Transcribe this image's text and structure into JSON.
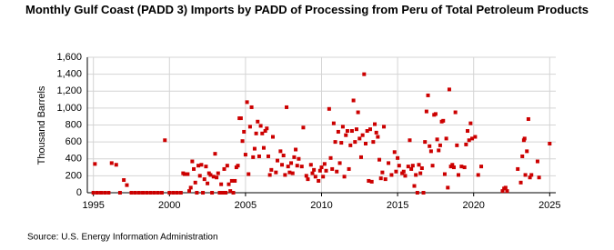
{
  "chart_data": {
    "type": "scatter",
    "title": "Monthly Gulf Coast (PADD 3) Imports by PADD of Processing from Peru of Total Petroleum Products",
    "y_label": "Thousand Barrels",
    "source": "Source: U.S. Energy Information Administration",
    "color": "#cc0000",
    "grid": true,
    "xlim": [
      1994.6,
      2025.4
    ],
    "xticks": [
      1995,
      2000,
      2005,
      2010,
      2015,
      2020,
      2025
    ],
    "ylim": [
      0,
      1600
    ],
    "yticks": [
      0,
      200,
      400,
      600,
      800,
      {
        "value": 1000,
        "label": "1,000"
      },
      {
        "value": 1200,
        "label": "1,200"
      },
      {
        "value": 1400,
        "label": "1,400"
      },
      {
        "value": 1600,
        "label": "1,600"
      }
    ],
    "x": [
      1995.0,
      1995.1,
      1995.25,
      1995.5,
      1995.75,
      1996.0,
      1996.2,
      1996.5,
      1996.75,
      1997.0,
      1997.2,
      1997.5,
      1997.75,
      1998.0,
      1998.25,
      1998.5,
      1998.75,
      1999.0,
      1999.25,
      1999.5,
      1999.7,
      2000.0,
      2000.25,
      2000.5,
      2000.75,
      2000.9,
      2001.0,
      2001.2,
      2001.3,
      2001.4,
      2001.5,
      2001.6,
      2001.7,
      2001.8,
      2001.9,
      2002.0,
      2002.1,
      2002.2,
      2002.3,
      2002.4,
      2002.5,
      2002.6,
      2002.7,
      2002.8,
      2002.9,
      2003.0,
      2003.1,
      2003.2,
      2003.3,
      2003.4,
      2003.5,
      2003.6,
      2003.7,
      2003.8,
      2003.9,
      2004.0,
      2004.1,
      2004.2,
      2004.3,
      2004.4,
      2004.5,
      2004.6,
      2004.7,
      2004.8,
      2004.9,
      2005.0,
      2005.1,
      2005.2,
      2005.3,
      2005.4,
      2005.5,
      2005.6,
      2005.7,
      2005.8,
      2005.9,
      2006.0,
      2006.1,
      2006.2,
      2006.3,
      2006.4,
      2006.5,
      2006.6,
      2006.7,
      2006.8,
      2007.0,
      2007.1,
      2007.3,
      2007.4,
      2007.5,
      2007.6,
      2007.7,
      2007.8,
      2007.9,
      2008.0,
      2008.1,
      2008.2,
      2008.3,
      2008.4,
      2008.5,
      2008.7,
      2008.8,
      2009.0,
      2009.1,
      2009.3,
      2009.4,
      2009.5,
      2009.6,
      2009.8,
      2009.9,
      2010.0,
      2010.1,
      2010.2,
      2010.3,
      2010.5,
      2010.6,
      2010.7,
      2010.8,
      2010.9,
      2011.0,
      2011.1,
      2011.2,
      2011.3,
      2011.4,
      2011.5,
      2011.6,
      2011.7,
      2011.8,
      2011.9,
      2012.0,
      2012.1,
      2012.2,
      2012.3,
      2012.4,
      2012.5,
      2012.6,
      2012.7,
      2012.8,
      2012.9,
      2013.0,
      2013.1,
      2013.2,
      2013.3,
      2013.4,
      2013.5,
      2013.6,
      2013.7,
      2013.8,
      2013.9,
      2014.0,
      2014.1,
      2014.2,
      2014.4,
      2014.6,
      2014.8,
      2014.9,
      2015.0,
      2015.1,
      2015.3,
      2015.4,
      2015.5,
      2015.7,
      2015.8,
      2015.9,
      2016.0,
      2016.1,
      2016.2,
      2016.3,
      2016.4,
      2016.5,
      2016.6,
      2016.7,
      2016.8,
      2016.9,
      2017.0,
      2017.1,
      2017.2,
      2017.3,
      2017.4,
      2017.5,
      2017.6,
      2017.7,
      2017.8,
      2017.9,
      2018.0,
      2018.1,
      2018.2,
      2018.3,
      2018.4,
      2018.5,
      2018.6,
      2018.7,
      2018.8,
      2018.9,
      2019.0,
      2019.2,
      2019.4,
      2019.5,
      2019.6,
      2019.7,
      2019.8,
      2019.9,
      2020.1,
      2020.3,
      2020.5,
      2021.9,
      2022.0,
      2022.1,
      2022.2,
      2022.9,
      2023.1,
      2023.2,
      2023.3,
      2023.35,
      2023.4,
      2023.5,
      2023.6,
      2023.7,
      2023.8,
      2024.2,
      2024.3,
      2025.0
    ],
    "values": [
      0,
      340,
      0,
      0,
      0,
      0,
      350,
      330,
      0,
      150,
      90,
      0,
      0,
      0,
      0,
      0,
      0,
      0,
      0,
      0,
      620,
      0,
      0,
      0,
      0,
      230,
      220,
      220,
      20,
      60,
      370,
      280,
      120,
      0,
      320,
      200,
      330,
      0,
      160,
      310,
      110,
      230,
      210,
      0,
      190,
      460,
      180,
      230,
      0,
      100,
      0,
      280,
      0,
      320,
      100,
      20,
      140,
      0,
      140,
      300,
      320,
      880,
      880,
      610,
      720,
      450,
      1070,
      220,
      780,
      1010,
      420,
      520,
      700,
      840,
      430,
      790,
      700,
      530,
      730,
      760,
      430,
      210,
      270,
      660,
      240,
      380,
      490,
      330,
      440,
      210,
      1010,
      310,
      240,
      350,
      230,
      420,
      510,
      320,
      400,
      310,
      770,
      200,
      160,
      330,
      230,
      270,
      190,
      140,
      260,
      300,
      190,
      340,
      260,
      990,
      410,
      280,
      820,
      600,
      250,
      720,
      350,
      590,
      780,
      190,
      680,
      730,
      280,
      560,
      730,
      1090,
      600,
      750,
      950,
      640,
      420,
      680,
      1400,
      580,
      730,
      140,
      750,
      130,
      600,
      810,
      710,
      660,
      390,
      170,
      240,
      780,
      160,
      350,
      210,
      480,
      250,
      410,
      320,
      230,
      250,
      200,
      310,
      620,
      280,
      320,
      80,
      210,
      0,
      330,
      230,
      290,
      0,
      600,
      960,
      1150,
      550,
      490,
      320,
      920,
      930,
      630,
      500,
      560,
      840,
      850,
      220,
      640,
      60,
      1220,
      310,
      330,
      300,
      950,
      560,
      210,
      310,
      300,
      570,
      730,
      620,
      820,
      640,
      660,
      210,
      310,
      20,
      50,
      60,
      20,
      280,
      120,
      430,
      620,
      640,
      210,
      490,
      870,
      180,
      210,
      370,
      180,
      580
    ]
  }
}
